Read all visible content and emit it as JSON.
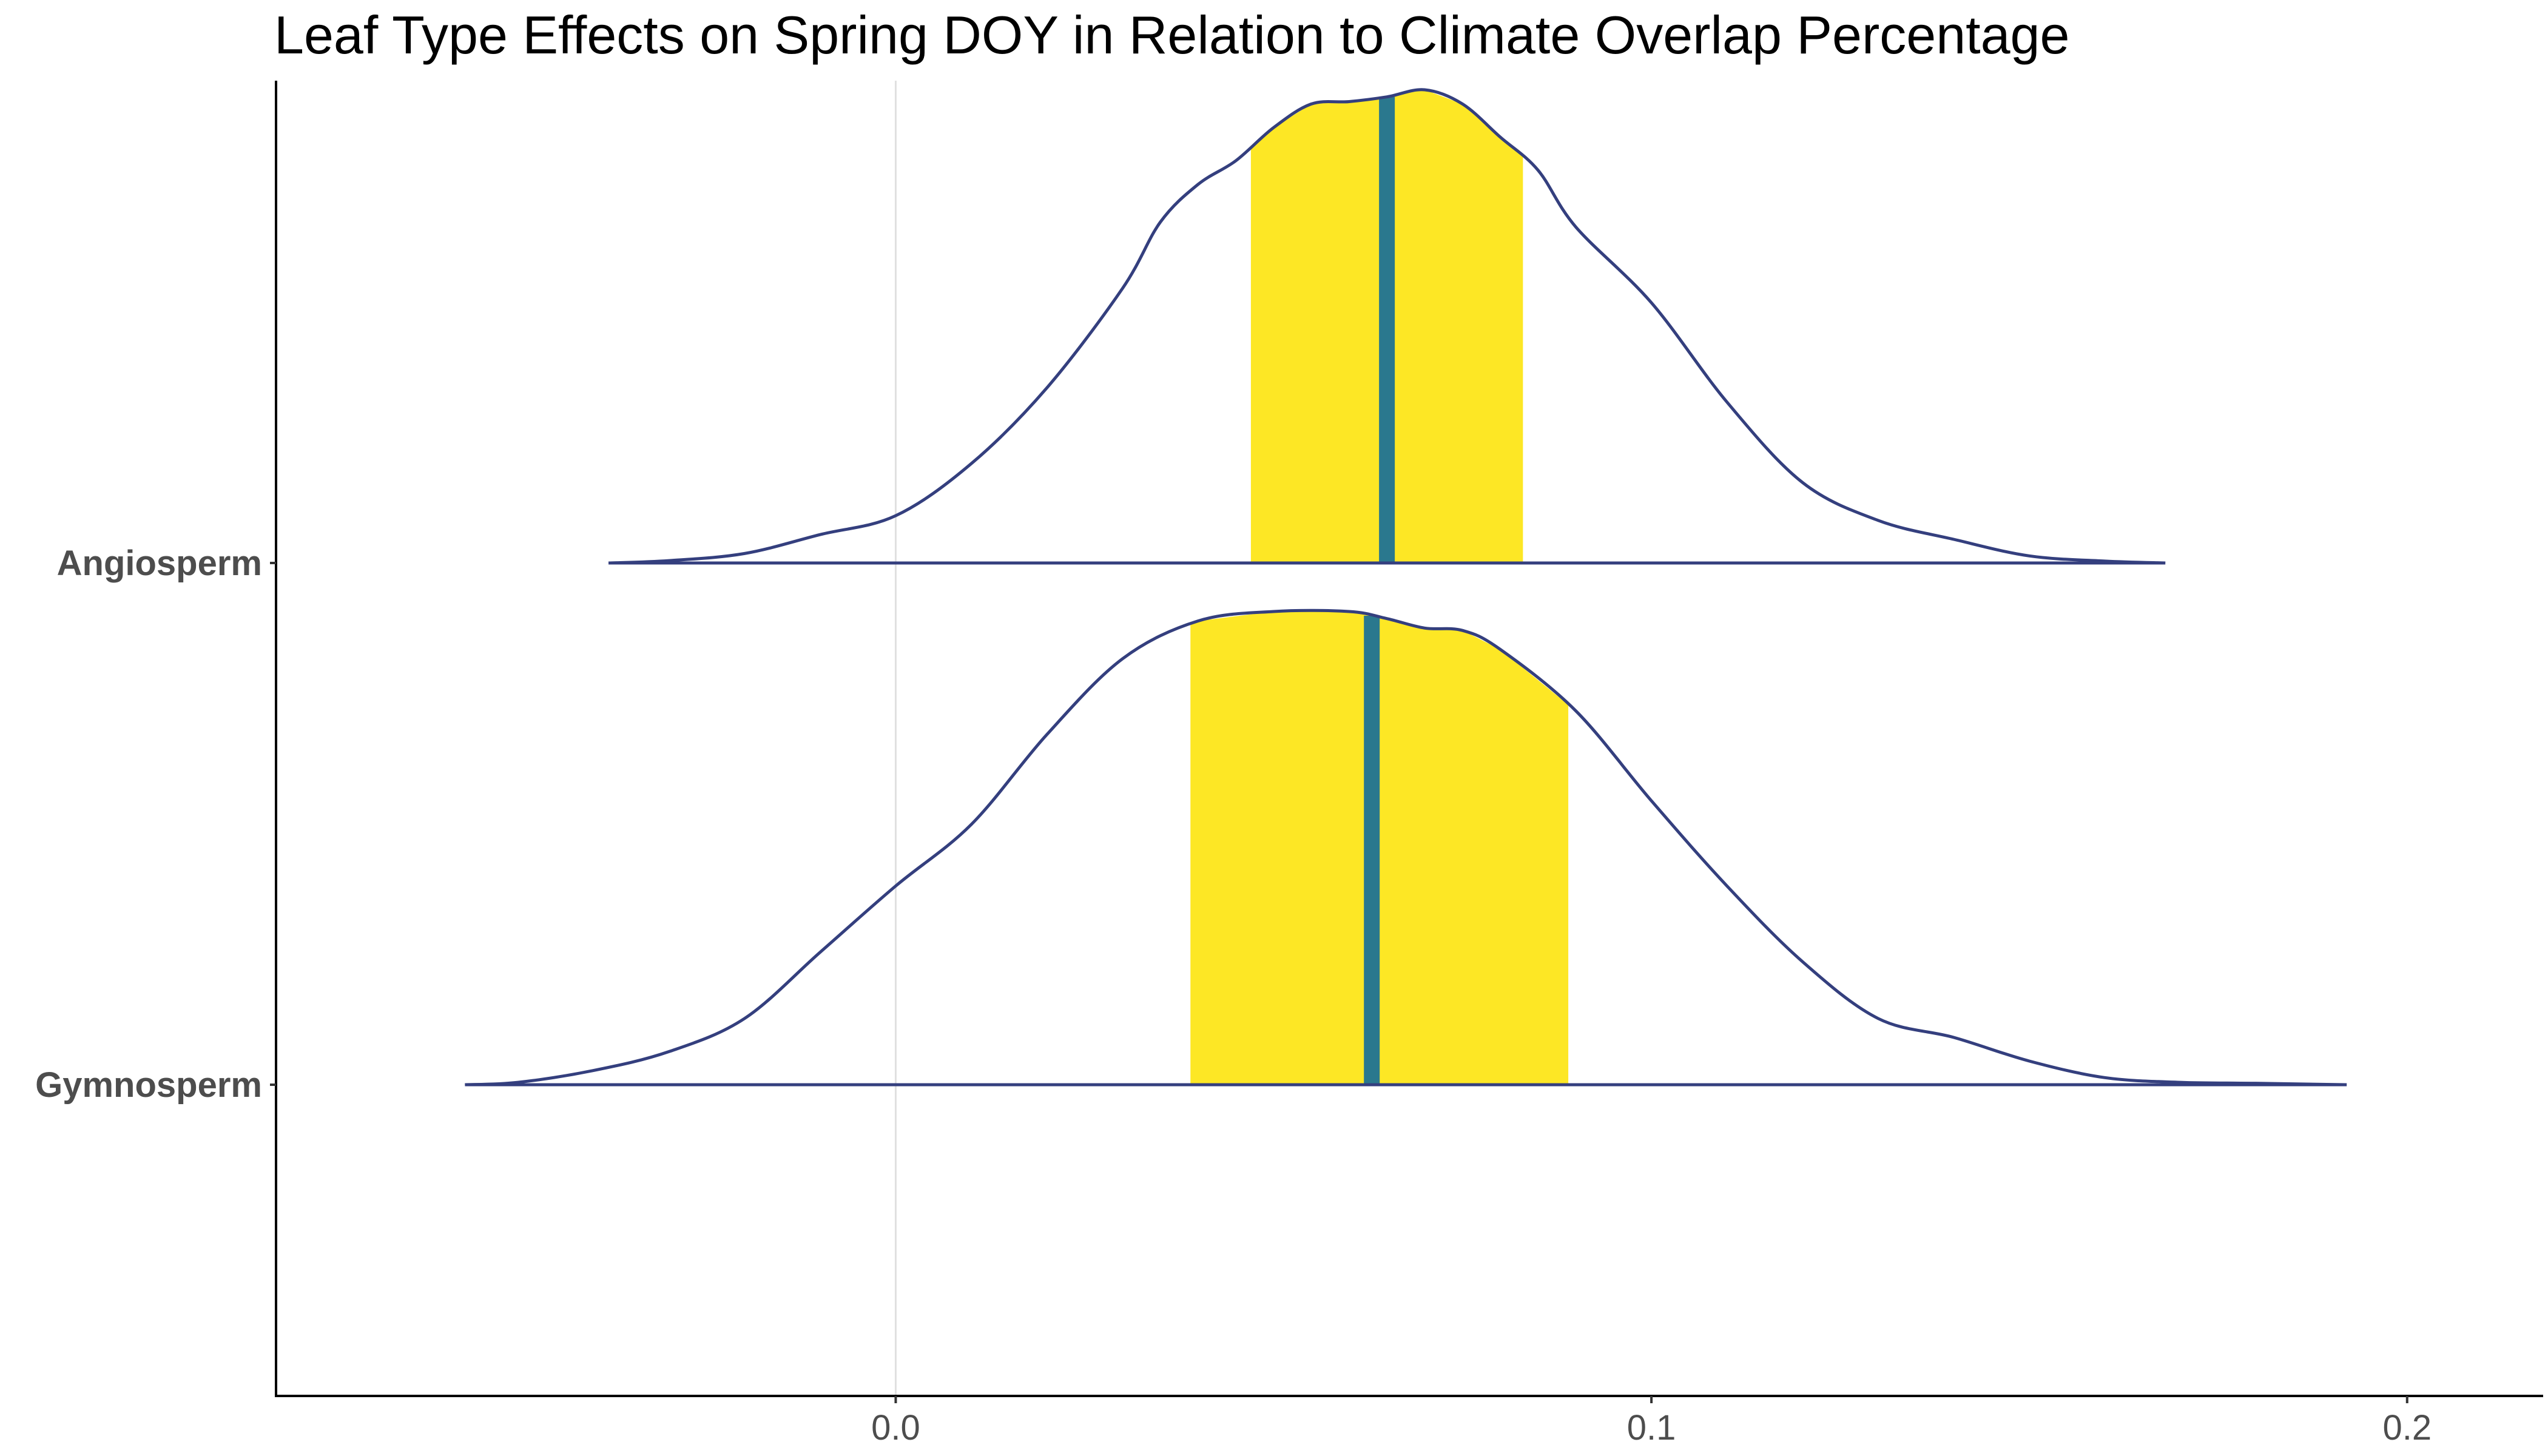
{
  "chart_data": {
    "type": "density",
    "title": "Leaf Type Effects on Spring DOY in Relation to Climate Overlap Percentage",
    "xlabel": "",
    "ylabel": "",
    "xlim": [
      -0.082,
      0.218
    ],
    "x_ticks": [
      0.0,
      0.1,
      0.2
    ],
    "x_tick_labels": [
      "0.0",
      "0.1",
      "0.2"
    ],
    "grid": {
      "major_x_at": [
        0.0
      ]
    },
    "colors": {
      "curve": "#343f7e",
      "interval_fill": "#fde725",
      "median_line": "#2a788e"
    },
    "series": [
      {
        "name": "Angiosperm",
        "median": 0.065,
        "interval": [
          0.047,
          0.083
        ],
        "density": {
          "x": [
            -0.038,
            -0.03,
            -0.02,
            -0.01,
            0.0,
            0.01,
            0.02,
            0.03,
            0.035,
            0.04,
            0.045,
            0.05,
            0.055,
            0.06,
            0.065,
            0.07,
            0.075,
            0.08,
            0.085,
            0.09,
            0.1,
            0.11,
            0.12,
            0.13,
            0.14,
            0.15,
            0.16,
            0.168
          ],
          "y": [
            0.0,
            0.005,
            0.02,
            0.06,
            0.1,
            0.21,
            0.37,
            0.58,
            0.72,
            0.8,
            0.85,
            0.92,
            0.97,
            0.975,
            0.985,
            1.0,
            0.97,
            0.9,
            0.83,
            0.71,
            0.55,
            0.34,
            0.17,
            0.09,
            0.05,
            0.015,
            0.004,
            0.0
          ]
        }
      },
      {
        "name": "Gymnosperm",
        "median": 0.063,
        "interval": [
          0.039,
          0.089
        ],
        "density": {
          "x": [
            -0.057,
            -0.05,
            -0.04,
            -0.03,
            -0.02,
            -0.01,
            0.0,
            0.01,
            0.02,
            0.03,
            0.04,
            0.05,
            0.06,
            0.065,
            0.07,
            0.075,
            0.08,
            0.09,
            0.1,
            0.11,
            0.12,
            0.13,
            0.14,
            0.15,
            0.16,
            0.17,
            0.18,
            0.192
          ],
          "y": [
            0.0,
            0.005,
            0.03,
            0.07,
            0.14,
            0.28,
            0.42,
            0.55,
            0.74,
            0.9,
            0.98,
            1.0,
            1.0,
            0.985,
            0.965,
            0.96,
            0.92,
            0.79,
            0.6,
            0.42,
            0.26,
            0.14,
            0.1,
            0.05,
            0.015,
            0.005,
            0.003,
            0.0
          ]
        }
      }
    ]
  }
}
